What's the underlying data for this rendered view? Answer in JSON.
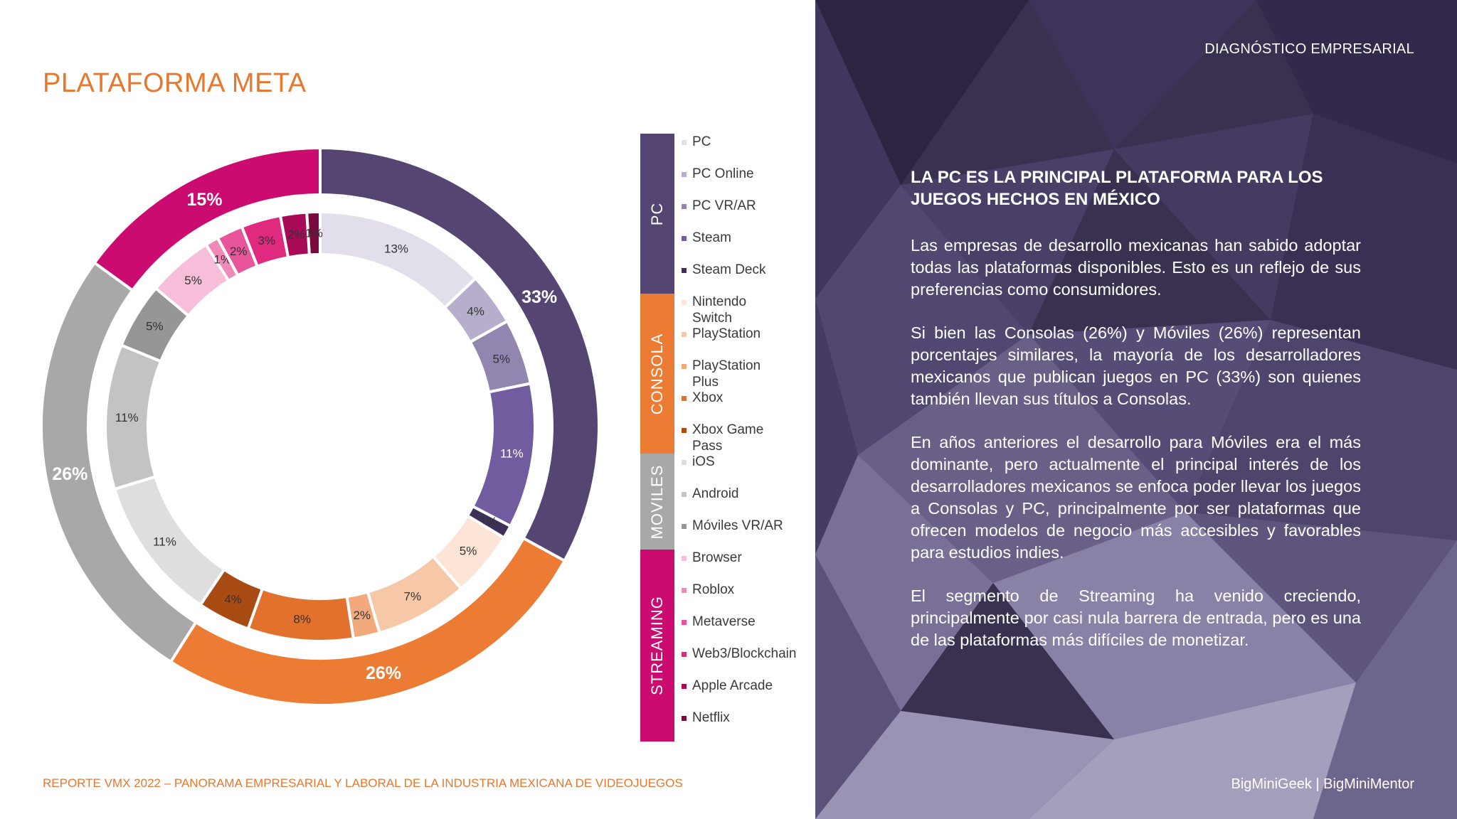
{
  "title": "PLATAFORMA META",
  "footer_left": "REPORTE VMX 2022 – PANORAMA EMPRESARIAL Y LABORAL DE LA INDUSTRIA MEXICANA DE VIDEOJUEGOS",
  "header_right": "DIAGNÓSTICO EMPRESARIAL",
  "footer_right": "BigMiniGeek | BigMiniMentor",
  "article": {
    "heading": "LA PC ES LA PRINCIPAL PLATAFORMA PARA LOS JUEGOS HECHOS EN MÉXICO",
    "paragraphs": [
      "Las empresas de desarrollo mexicanas han sabido adoptar todas las plataformas disponibles. Esto es un reflejo de sus preferencias como consumidores.",
      "Si bien las Consolas (26%) y Móviles (26%) representan porcentajes similares, la mayoría de los desarrolladores mexicanos que publican juegos en PC (33%) son quienes también llevan sus títulos a Consolas.",
      "En años anteriores el desarrollo para Móviles era el más dominante, pero actualmente el principal interés de los desarrolladores mexicanos se enfoca poder llevar los juegos a Consolas y PC, principalmente por ser plataformas que ofrecen modelos de negocio más accesibles y favorables para estudios indies.",
      "El segmento de Streaming ha venido creciendo, principalmente por casi nula barrera de entrada, pero es una de las plataformas más difíciles de monetizar."
    ]
  },
  "chart_data": {
    "type": "pie",
    "subtype": "nested-donut",
    "categories": [
      {
        "name": "PC",
        "label": "33%",
        "value": 33,
        "color": "#544572",
        "label_color": "#ffffff"
      },
      {
        "name": "CONSOLA",
        "label": "26%",
        "value": 26,
        "color": "#ec7b33",
        "label_color": "#ffffff"
      },
      {
        "name": "MOVILES",
        "label": "26%",
        "value": 26,
        "color": "#a8a8a8",
        "label_color": "#ffffff"
      },
      {
        "name": "STREAMING",
        "label": "15%",
        "value": 15,
        "color": "#cc0b70",
        "label_color": "#ffffff"
      }
    ],
    "platforms": [
      {
        "name": "PC",
        "group": "PC",
        "label": "13%",
        "value": 13,
        "color": "#e2dfea",
        "label_color": "#333333"
      },
      {
        "name": "PC Online",
        "group": "PC",
        "label": "4%",
        "value": 4,
        "color": "#b6aecb",
        "label_color": "#333333"
      },
      {
        "name": "PC VR/AR",
        "group": "PC",
        "label": "5%",
        "value": 5,
        "color": "#9285b0",
        "label_color": "#333333"
      },
      {
        "name": "Steam",
        "group": "PC",
        "label": "11%",
        "value": 11,
        "color": "#705c9f",
        "label_color": "#ffffff"
      },
      {
        "name": "Steam Deck",
        "group": "PC",
        "label": "1%",
        "value": 1,
        "color": "#3f3059",
        "label_color": "#333333"
      },
      {
        "name": "Nintendo Switch",
        "group": "CONSOLA",
        "label": "5%",
        "value": 5,
        "color": "#fce5d6",
        "label_color": "#333333"
      },
      {
        "name": "PlayStation",
        "group": "CONSOLA",
        "label": "7%",
        "value": 7,
        "color": "#f7c8a7",
        "label_color": "#333333"
      },
      {
        "name": "PlayStation Plus",
        "group": "CONSOLA",
        "label": "2%",
        "value": 2,
        "color": "#f2aa7d",
        "label_color": "#333333"
      },
      {
        "name": "Xbox",
        "group": "CONSOLA",
        "label": "8%",
        "value": 8,
        "color": "#e2712e",
        "label_color": "#333333"
      },
      {
        "name": "Xbox Game Pass",
        "group": "CONSOLA",
        "label": "4%",
        "value": 4,
        "color": "#a94c14",
        "label_color": "#333333"
      },
      {
        "name": "iOS",
        "group": "MOVILES",
        "label": "11%",
        "value": 11,
        "color": "#dedede",
        "label_color": "#333333"
      },
      {
        "name": "Android",
        "group": "MOVILES",
        "label": "11%",
        "value": 11,
        "color": "#c3c3c3",
        "label_color": "#333333"
      },
      {
        "name": "Móviles VR/AR",
        "group": "MOVILES",
        "label": "5%",
        "value": 5,
        "color": "#969696",
        "label_color": "#333333"
      },
      {
        "name": "Browser",
        "group": "STREAMING",
        "label": "5%",
        "value": 5,
        "color": "#f6bed9",
        "label_color": "#333333"
      },
      {
        "name": "Roblox",
        "group": "STREAMING",
        "label": "1%",
        "value": 1,
        "color": "#ef8ab8",
        "label_color": "#333333"
      },
      {
        "name": "Metaverse",
        "group": "STREAMING",
        "label": "2%",
        "value": 2,
        "color": "#e8559a",
        "label_color": "#333333"
      },
      {
        "name": "Web3/Blockchain",
        "group": "STREAMING",
        "label": "3%",
        "value": 3,
        "color": "#df2a7f",
        "label_color": "#333333"
      },
      {
        "name": "Apple Arcade",
        "group": "STREAMING",
        "label": "2%",
        "value": 2,
        "color": "#a80a58",
        "label_color": "#333333"
      },
      {
        "name": "Netflix",
        "group": "STREAMING",
        "label": "1%",
        "value": 1,
        "color": "#7a0a3e",
        "label_color": "#333333"
      }
    ],
    "legend": {
      "groups": [
        {
          "name": "PC",
          "color": "#544572",
          "items": [
            {
              "label": "PC",
              "color": "#e2dfea"
            },
            {
              "label": "PC Online",
              "color": "#b6aecb"
            },
            {
              "label": "PC VR/AR",
              "color": "#9285b0"
            },
            {
              "label": "Steam",
              "color": "#705c9f"
            },
            {
              "label": "Steam Deck",
              "color": "#3f3059"
            }
          ]
        },
        {
          "name": "CONSOLA",
          "color": "#ec7b33",
          "items": [
            {
              "label": "Nintendo Switch",
              "color": "#fce5d6"
            },
            {
              "label": "PlayStation",
              "color": "#f7c8a7"
            },
            {
              "label": "PlayStation Plus",
              "color": "#f2aa7d"
            },
            {
              "label": "Xbox",
              "color": "#e2712e"
            },
            {
              "label": "Xbox Game Pass",
              "color": "#a94c14"
            }
          ]
        },
        {
          "name": "MOVILES",
          "color": "#a8a8a8",
          "items": [
            {
              "label": "iOS",
              "color": "#dedede"
            },
            {
              "label": "Android",
              "color": "#c3c3c3"
            },
            {
              "label": "Móviles VR/AR",
              "color": "#969696"
            }
          ]
        },
        {
          "name": "STREAMING",
          "color": "#cc0b70",
          "items": [
            {
              "label": "Browser",
              "color": "#f6bed9"
            },
            {
              "label": "Roblox",
              "color": "#ef8ab8"
            },
            {
              "label": "Metaverse",
              "color": "#e8559a"
            },
            {
              "label": "Web3/Blockchain",
              "color": "#df2a7f"
            },
            {
              "label": "Apple Arcade",
              "color": "#a80a58"
            },
            {
              "label": "Netflix",
              "color": "#7a0a3e"
            }
          ]
        }
      ]
    }
  }
}
